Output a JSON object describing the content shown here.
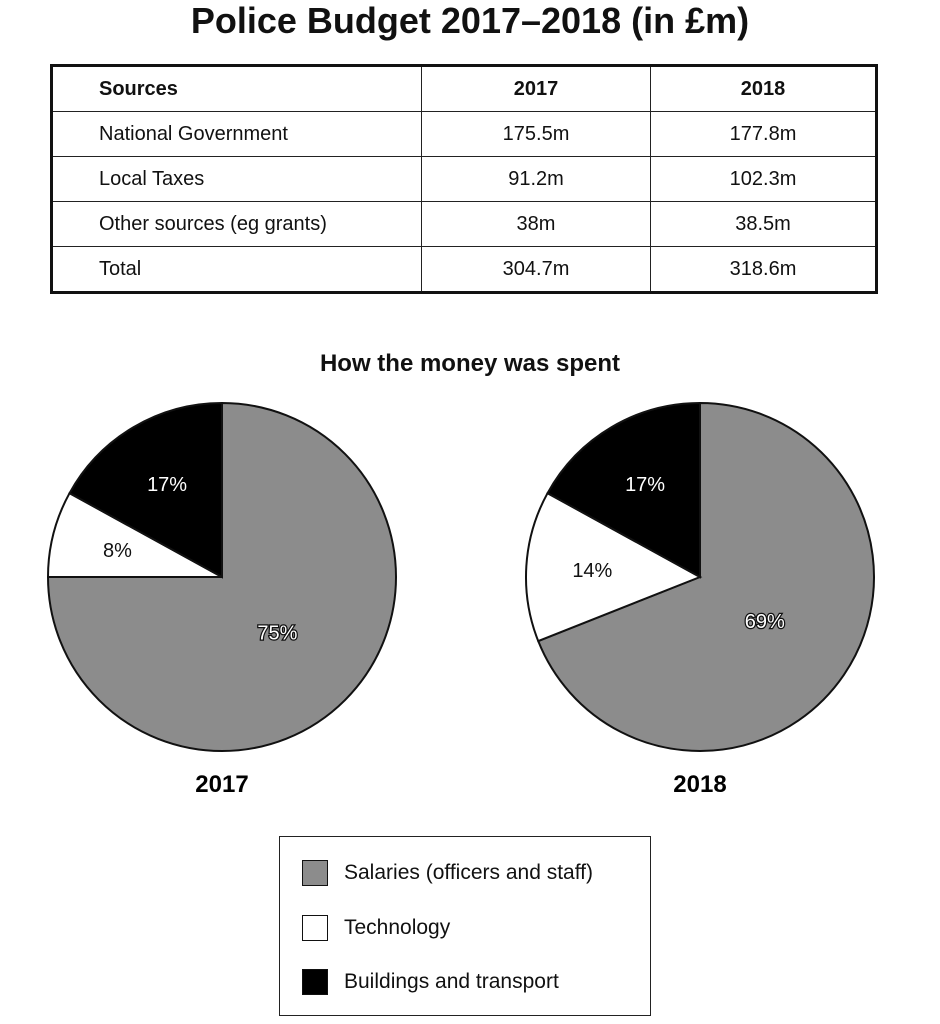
{
  "title": "Police Budget 2017–2018 (in £m)",
  "table": {
    "headers": [
      "Sources",
      "2017",
      "2018"
    ],
    "rows": [
      [
        "National Government",
        "175.5m",
        "177.8m"
      ],
      [
        "Local Taxes",
        "91.2m",
        "102.3m"
      ],
      [
        "Other sources (eg grants)",
        "38m",
        "38.5m"
      ],
      [
        "Total",
        "304.7m",
        "318.6m"
      ]
    ]
  },
  "chart_data": [
    {
      "type": "pie",
      "title": "How the money was spent",
      "label": "2017",
      "slices": [
        {
          "name": "Salaries (officers and staff)",
          "value": 75,
          "label": "75%",
          "color": "#8c8c8c"
        },
        {
          "name": "Technology",
          "value": 8,
          "label": "8%",
          "color": "#ffffff"
        },
        {
          "name": "Buildings and transport",
          "value": 17,
          "label": "17%",
          "color": "#000000"
        }
      ],
      "legend": "bottom-center"
    },
    {
      "type": "pie",
      "label": "2018",
      "slices": [
        {
          "name": "Salaries (officers and staff)",
          "value": 69,
          "label": "69%",
          "color": "#8c8c8c"
        },
        {
          "name": "Technology",
          "value": 14,
          "label": "14%",
          "color": "#ffffff"
        },
        {
          "name": "Buildings and transport",
          "value": 17,
          "label": "17%",
          "color": "#000000"
        }
      ],
      "legend": "bottom-center"
    }
  ],
  "legend": [
    {
      "label": "Salaries (officers and staff)",
      "color": "#8c8c8c"
    },
    {
      "label": "Technology",
      "color": "#ffffff"
    },
    {
      "label": "Buildings and transport",
      "color": "#000000"
    }
  ]
}
